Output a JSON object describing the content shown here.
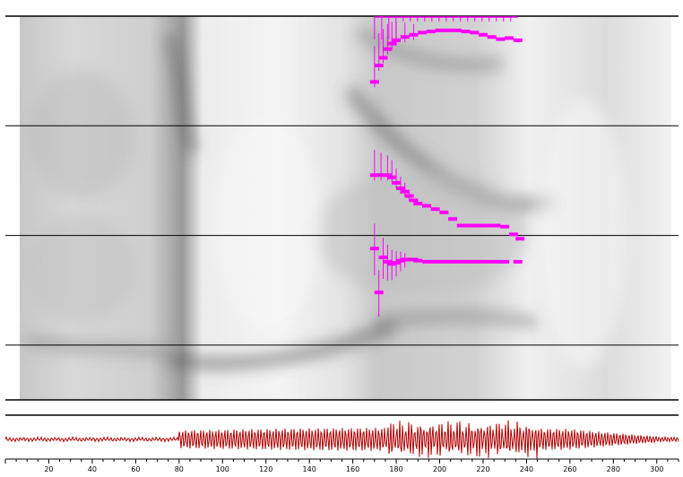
{
  "colors": {
    "track_marker": "#ff00ff",
    "waveform": "#b00000",
    "gridline": "#000000",
    "background": "#ffffff"
  },
  "axis": {
    "min": 0,
    "max": 310,
    "ticks": [
      20,
      40,
      60,
      80,
      100,
      120,
      140,
      160,
      180,
      200,
      220,
      240,
      260,
      280,
      300
    ],
    "tick_labels": [
      "20",
      "40",
      "60",
      "80",
      "100",
      "120",
      "140",
      "160",
      "180",
      "200",
      "220",
      "240",
      "260",
      "280",
      "300"
    ]
  },
  "chart_data": {
    "type": "scatter",
    "xlim": [
      0,
      310
    ],
    "spectrogram": {
      "bands_visible": 4
    },
    "series": [
      {
        "values_x": [
          170,
          172,
          174,
          176,
          178,
          180,
          184,
          188,
          192,
          196,
          200,
          204,
          208,
          212,
          216,
          220,
          224,
          228,
          232,
          236
        ],
        "values_rel": [
          0.4,
          0.55,
          0.62,
          0.7,
          0.75,
          0.78,
          0.81,
          0.83,
          0.85,
          0.86,
          0.87,
          0.87,
          0.87,
          0.86,
          0.85,
          0.83,
          0.81,
          0.79,
          0.8,
          0.78
        ]
      },
      {
        "values_x": [
          170,
          173,
          176,
          178,
          180,
          182,
          184,
          186,
          188,
          190,
          194,
          198,
          202,
          206,
          210,
          214,
          218,
          222,
          226,
          230,
          234,
          237
        ],
        "values_rel": [
          0.55,
          0.55,
          0.55,
          0.53,
          0.48,
          0.43,
          0.4,
          0.36,
          0.32,
          0.29,
          0.27,
          0.24,
          0.21,
          0.15,
          0.09,
          0.09,
          0.09,
          0.09,
          0.09,
          0.08,
          0.01,
          -0.03
        ]
      },
      {
        "values_x": [
          170,
          172,
          174,
          176,
          178,
          180,
          182,
          184,
          186,
          188,
          190,
          194,
          198,
          202,
          206,
          210,
          214,
          218,
          222,
          226,
          230,
          236
        ],
        "values_rel": [
          0.88,
          0.48,
          0.8,
          0.76,
          0.74,
          0.75,
          0.77,
          0.78,
          0.78,
          0.78,
          0.77,
          0.76,
          0.76,
          0.76,
          0.76,
          0.76,
          0.76,
          0.76,
          0.76,
          0.76,
          0.76,
          0.76
        ]
      }
    ],
    "waveform": {
      "voiced_start": 80,
      "voiced_end": 300
    }
  }
}
